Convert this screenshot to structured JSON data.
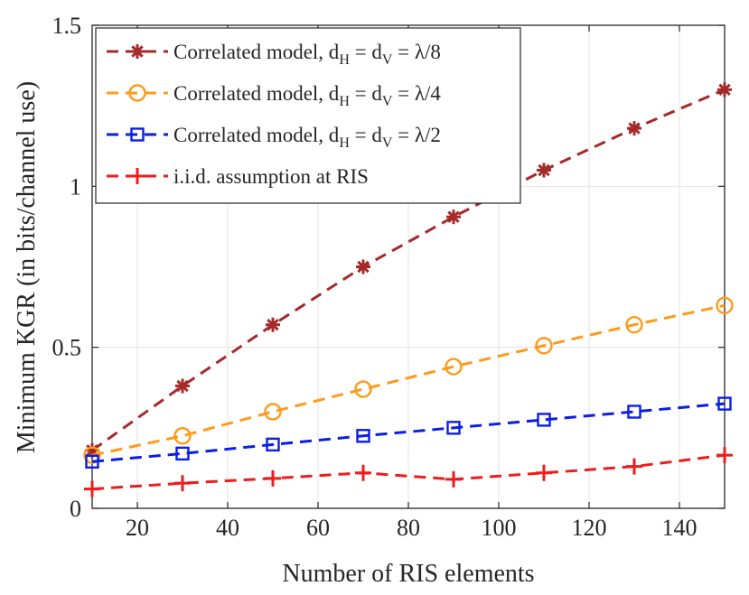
{
  "chart_data": {
    "type": "line",
    "title": "",
    "xlabel": "Number of RIS elements",
    "ylabel": "Minimum KGR (in bits/channel use)",
    "xlim": [
      10,
      150
    ],
    "ylim": [
      0,
      1.5
    ],
    "xticks": [
      20,
      40,
      60,
      80,
      100,
      120,
      140
    ],
    "xtick_labels": [
      "20",
      "40",
      "60",
      "80",
      "100",
      "120",
      "140"
    ],
    "yticks": [
      0,
      0.5,
      1,
      1.5
    ],
    "ytick_labels": [
      "0",
      "0.5",
      "1",
      "1.5"
    ],
    "grid": true,
    "legend_position": "top-left",
    "x": [
      10,
      30,
      50,
      70,
      90,
      110,
      130,
      150
    ],
    "series": [
      {
        "name": "Correlated model, d_H = d_V = λ/8",
        "legend": {
          "prefix": "Correlated model, d",
          "sub1": "H",
          "mid": " = d",
          "sub2": "V",
          "suffix": " = λ/8"
        },
        "color": "#a52a2a",
        "marker": "asterisk",
        "values": [
          0.18,
          0.38,
          0.57,
          0.75,
          0.905,
          1.05,
          1.18,
          1.3
        ]
      },
      {
        "name": "Correlated model, d_H = d_V = λ/4",
        "legend": {
          "prefix": "Correlated model, d",
          "sub1": "H",
          "mid": " = d",
          "sub2": "V",
          "suffix": " = λ/4"
        },
        "color": "#ff9a1a",
        "marker": "circle",
        "values": [
          0.165,
          0.225,
          0.3,
          0.37,
          0.44,
          0.505,
          0.57,
          0.63
        ]
      },
      {
        "name": "Correlated model, d_H = d_V = λ/2",
        "legend": {
          "prefix": "Correlated model, d",
          "sub1": "H",
          "mid": " = d",
          "sub2": "V",
          "suffix": " = λ/2"
        },
        "color": "#0a1ee6",
        "marker": "square",
        "values": [
          0.145,
          0.17,
          0.198,
          0.225,
          0.25,
          0.275,
          0.3,
          0.325
        ]
      },
      {
        "name": "i.i.d. assumption at RIS",
        "legend": {
          "prefix": "i.i.d. assumption at RIS",
          "sub1": "",
          "mid": "",
          "sub2": "",
          "suffix": ""
        },
        "color": "#ee1c1c",
        "marker": "plus",
        "values": [
          0.06,
          0.078,
          0.093,
          0.11,
          0.09,
          0.11,
          0.13,
          0.165
        ]
      }
    ]
  }
}
